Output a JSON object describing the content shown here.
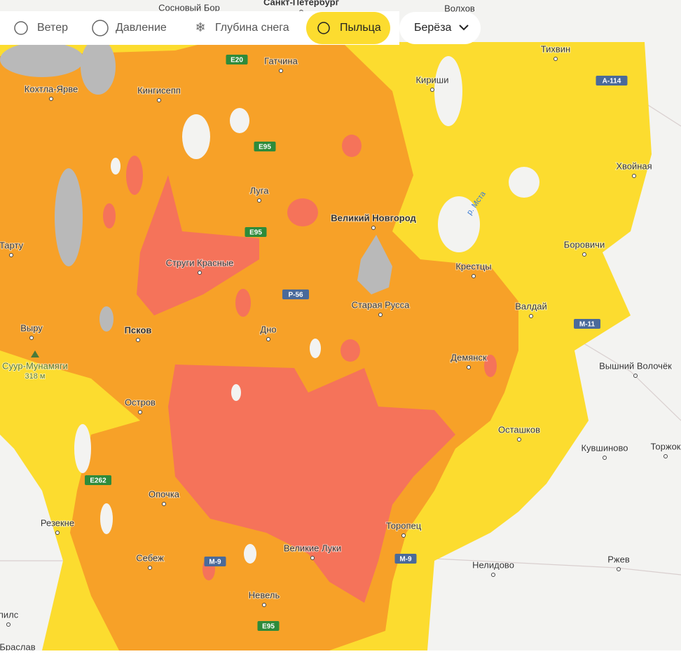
{
  "toolbar": {
    "layers": [
      "Ветер",
      "Давление",
      "Глубина снега",
      "Пыльца"
    ],
    "allergen": "Берёза"
  },
  "map": {
    "cities": [
      "Сосновый Бор",
      "Санкт-Петербург",
      "Волхов",
      "Кохтла-Ярве",
      "Кингисепп",
      "Гатчина",
      "Тихвин",
      "Кириши",
      "Хвойная",
      "Луга",
      "Великий Новгород",
      "Тарту",
      "Струги Красные",
      "Боровичи",
      "Крестцы",
      "Старая Русса",
      "Валдай",
      "Выру",
      "Псков",
      "Дно",
      "Демянск",
      "Вышний Волочёк",
      "Остров",
      "Осташков",
      "Кувшиново",
      "Торжок",
      "Опочка",
      "Резекне",
      "Торопец",
      "Великие Луки",
      "Себеж",
      "Нелидово",
      "Ржев",
      "Невель",
      "пилс",
      "Браслав"
    ],
    "roads": [
      "E20",
      "E95",
      "E95",
      "Р-56",
      "А-114",
      "М-11",
      "E262",
      "М-9",
      "М-9",
      "E95"
    ],
    "river": "р. Мста",
    "peak": {
      "name": "Суур-Мунамяги",
      "height": "318 м"
    }
  }
}
